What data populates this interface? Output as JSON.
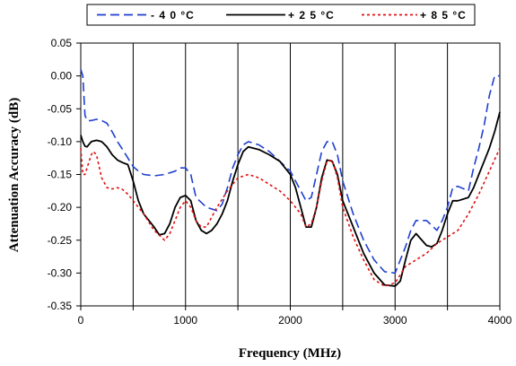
{
  "chart_data": {
    "type": "line",
    "xlabel": "Frequency (MHz)",
    "ylabel": "Attenuation Accuracy (dB)",
    "xlim": [
      0,
      4000
    ],
    "ylim": [
      -0.35,
      0.05
    ],
    "x_ticks": [
      0,
      500,
      1000,
      1500,
      2000,
      2500,
      3000,
      3500,
      4000
    ],
    "x_tick_labels": [
      "0",
      "",
      "1000",
      "",
      "2000",
      "",
      "3000",
      "",
      "4000"
    ],
    "y_ticks": [
      0.05,
      0.0,
      -0.05,
      -0.1,
      -0.15,
      -0.2,
      -0.25,
      -0.3,
      -0.35
    ],
    "y_tick_labels": [
      "0.05",
      "0.00",
      "-0.05",
      "-0.10",
      "-0.15",
      "-0.20",
      "-0.25",
      "-0.30",
      "-0.35"
    ],
    "grid": "vertical-at-major-x",
    "legend_position": "top",
    "series": [
      {
        "name": "- 4 0 °C",
        "color": "#1f3fd0",
        "dash": "long-dash",
        "points": [
          [
            0,
            0.01
          ],
          [
            20,
            0.0
          ],
          [
            40,
            -0.06
          ],
          [
            60,
            -0.068
          ],
          [
            100,
            -0.068
          ],
          [
            150,
            -0.066
          ],
          [
            200,
            -0.068
          ],
          [
            250,
            -0.072
          ],
          [
            300,
            -0.085
          ],
          [
            350,
            -0.1
          ],
          [
            400,
            -0.112
          ],
          [
            450,
            -0.125
          ],
          [
            500,
            -0.138
          ],
          [
            550,
            -0.145
          ],
          [
            600,
            -0.15
          ],
          [
            700,
            -0.152
          ],
          [
            800,
            -0.15
          ],
          [
            900,
            -0.145
          ],
          [
            950,
            -0.14
          ],
          [
            1000,
            -0.14
          ],
          [
            1050,
            -0.15
          ],
          [
            1100,
            -0.185
          ],
          [
            1200,
            -0.2
          ],
          [
            1300,
            -0.205
          ],
          [
            1350,
            -0.195
          ],
          [
            1400,
            -0.17
          ],
          [
            1450,
            -0.14
          ],
          [
            1500,
            -0.12
          ],
          [
            1550,
            -0.105
          ],
          [
            1600,
            -0.1
          ],
          [
            1700,
            -0.105
          ],
          [
            1800,
            -0.115
          ],
          [
            1900,
            -0.13
          ],
          [
            2000,
            -0.145
          ],
          [
            2100,
            -0.175
          ],
          [
            2150,
            -0.19
          ],
          [
            2200,
            -0.185
          ],
          [
            2250,
            -0.15
          ],
          [
            2300,
            -0.115
          ],
          [
            2350,
            -0.1
          ],
          [
            2400,
            -0.1
          ],
          [
            2450,
            -0.12
          ],
          [
            2500,
            -0.16
          ],
          [
            2600,
            -0.21
          ],
          [
            2700,
            -0.25
          ],
          [
            2800,
            -0.28
          ],
          [
            2900,
            -0.298
          ],
          [
            3000,
            -0.3
          ],
          [
            3100,
            -0.26
          ],
          [
            3150,
            -0.235
          ],
          [
            3200,
            -0.22
          ],
          [
            3300,
            -0.22
          ],
          [
            3400,
            -0.235
          ],
          [
            3450,
            -0.22
          ],
          [
            3500,
            -0.2
          ],
          [
            3550,
            -0.17
          ],
          [
            3600,
            -0.168
          ],
          [
            3700,
            -0.175
          ],
          [
            3750,
            -0.14
          ],
          [
            3800,
            -0.11
          ],
          [
            3850,
            -0.075
          ],
          [
            3900,
            -0.03
          ],
          [
            3950,
            0.0
          ],
          [
            4000,
            0.0
          ]
        ]
      },
      {
        "name": "+ 2 5 °C",
        "color": "#000000",
        "dash": "solid",
        "points": [
          [
            0,
            -0.09
          ],
          [
            20,
            -0.1
          ],
          [
            40,
            -0.107
          ],
          [
            60,
            -0.108
          ],
          [
            100,
            -0.1
          ],
          [
            150,
            -0.098
          ],
          [
            200,
            -0.1
          ],
          [
            250,
            -0.108
          ],
          [
            300,
            -0.12
          ],
          [
            350,
            -0.128
          ],
          [
            400,
            -0.132
          ],
          [
            450,
            -0.135
          ],
          [
            500,
            -0.16
          ],
          [
            550,
            -0.19
          ],
          [
            600,
            -0.21
          ],
          [
            700,
            -0.23
          ],
          [
            750,
            -0.242
          ],
          [
            800,
            -0.24
          ],
          [
            850,
            -0.225
          ],
          [
            900,
            -0.2
          ],
          [
            950,
            -0.185
          ],
          [
            1000,
            -0.182
          ],
          [
            1050,
            -0.19
          ],
          [
            1100,
            -0.22
          ],
          [
            1150,
            -0.235
          ],
          [
            1200,
            -0.24
          ],
          [
            1250,
            -0.235
          ],
          [
            1300,
            -0.225
          ],
          [
            1350,
            -0.21
          ],
          [
            1400,
            -0.19
          ],
          [
            1450,
            -0.16
          ],
          [
            1500,
            -0.135
          ],
          [
            1550,
            -0.115
          ],
          [
            1600,
            -0.108
          ],
          [
            1700,
            -0.112
          ],
          [
            1800,
            -0.12
          ],
          [
            1900,
            -0.13
          ],
          [
            2000,
            -0.15
          ],
          [
            2050,
            -0.17
          ],
          [
            2100,
            -0.2
          ],
          [
            2150,
            -0.23
          ],
          [
            2200,
            -0.23
          ],
          [
            2250,
            -0.2
          ],
          [
            2300,
            -0.155
          ],
          [
            2350,
            -0.128
          ],
          [
            2400,
            -0.13
          ],
          [
            2450,
            -0.15
          ],
          [
            2500,
            -0.19
          ],
          [
            2600,
            -0.23
          ],
          [
            2700,
            -0.27
          ],
          [
            2800,
            -0.3
          ],
          [
            2900,
            -0.318
          ],
          [
            3000,
            -0.32
          ],
          [
            3050,
            -0.312
          ],
          [
            3100,
            -0.28
          ],
          [
            3150,
            -0.25
          ],
          [
            3200,
            -0.24
          ],
          [
            3300,
            -0.258
          ],
          [
            3350,
            -0.26
          ],
          [
            3400,
            -0.255
          ],
          [
            3450,
            -0.235
          ],
          [
            3500,
            -0.21
          ],
          [
            3550,
            -0.19
          ],
          [
            3600,
            -0.19
          ],
          [
            3700,
            -0.185
          ],
          [
            3750,
            -0.17
          ],
          [
            3800,
            -0.15
          ],
          [
            3850,
            -0.13
          ],
          [
            3900,
            -0.11
          ],
          [
            3950,
            -0.085
          ],
          [
            4000,
            -0.055
          ]
        ]
      },
      {
        "name": "+ 8 5 °C",
        "color": "#e01010",
        "dash": "dotted",
        "points": [
          [
            0,
            -0.11
          ],
          [
            20,
            -0.15
          ],
          [
            40,
            -0.15
          ],
          [
            60,
            -0.14
          ],
          [
            100,
            -0.12
          ],
          [
            120,
            -0.115
          ],
          [
            150,
            -0.12
          ],
          [
            200,
            -0.155
          ],
          [
            250,
            -0.17
          ],
          [
            300,
            -0.172
          ],
          [
            350,
            -0.17
          ],
          [
            400,
            -0.173
          ],
          [
            450,
            -0.18
          ],
          [
            500,
            -0.19
          ],
          [
            550,
            -0.2
          ],
          [
            600,
            -0.21
          ],
          [
            700,
            -0.235
          ],
          [
            800,
            -0.25
          ],
          [
            850,
            -0.24
          ],
          [
            900,
            -0.22
          ],
          [
            950,
            -0.2
          ],
          [
            1000,
            -0.19
          ],
          [
            1050,
            -0.2
          ],
          [
            1100,
            -0.22
          ],
          [
            1150,
            -0.23
          ],
          [
            1200,
            -0.23
          ],
          [
            1250,
            -0.215
          ],
          [
            1300,
            -0.2
          ],
          [
            1400,
            -0.175
          ],
          [
            1500,
            -0.155
          ],
          [
            1600,
            -0.15
          ],
          [
            1700,
            -0.155
          ],
          [
            1800,
            -0.165
          ],
          [
            1900,
            -0.175
          ],
          [
            2000,
            -0.19
          ],
          [
            2100,
            -0.21
          ],
          [
            2150,
            -0.23
          ],
          [
            2200,
            -0.225
          ],
          [
            2250,
            -0.2
          ],
          [
            2300,
            -0.16
          ],
          [
            2350,
            -0.13
          ],
          [
            2400,
            -0.128
          ],
          [
            2450,
            -0.155
          ],
          [
            2500,
            -0.2
          ],
          [
            2600,
            -0.245
          ],
          [
            2700,
            -0.28
          ],
          [
            2800,
            -0.31
          ],
          [
            2900,
            -0.32
          ],
          [
            3000,
            -0.315
          ],
          [
            3100,
            -0.29
          ],
          [
            3200,
            -0.28
          ],
          [
            3300,
            -0.27
          ],
          [
            3400,
            -0.255
          ],
          [
            3500,
            -0.245
          ],
          [
            3600,
            -0.235
          ],
          [
            3700,
            -0.21
          ],
          [
            3800,
            -0.18
          ],
          [
            3900,
            -0.145
          ],
          [
            4000,
            -0.11
          ]
        ]
      }
    ]
  }
}
